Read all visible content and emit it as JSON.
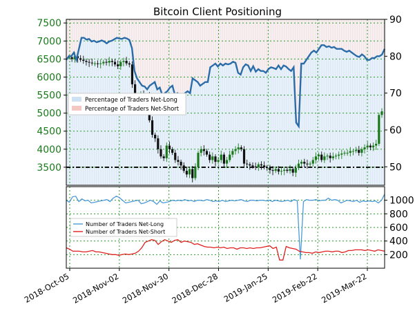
{
  "chart_data": [
    {
      "type": "candlestick+line",
      "title": "Bitcoin Client Positioning",
      "x_tick_labels": [
        "2018-Oct-05",
        "2018-Nov-02",
        "2018-Nov-30",
        "2018-Dec-28",
        "2019-Jan-25",
        "2019-Feb-22",
        "2019-Mar-22"
      ],
      "left_axis": {
        "ticks": [
          3500,
          4000,
          4500,
          5000,
          5500,
          6000,
          6500,
          7000,
          7500
        ],
        "range": [
          3000,
          7600
        ],
        "color": "#1a7a1a"
      },
      "right_axis": {
        "ticks": [
          50,
          60,
          70,
          80,
          90
        ],
        "range": [
          45,
          90
        ]
      },
      "reference_line": {
        "left_value": 3500,
        "right_value": 50
      },
      "legend": {
        "placement": "left",
        "entries": [
          {
            "label": "Percentage of Traders Net-Long",
            "color": "#cfe2f3"
          },
          {
            "label": "Percentage of Traders Net-Short",
            "color": "#f4c7c3"
          }
        ]
      },
      "price_series": {
        "name": "BTC price",
        "values": [
          6550,
          6500,
          6580,
          6520,
          6480,
          6450,
          6420,
          6400,
          6380,
          6380,
          6360,
          6380,
          6420,
          6400,
          6450,
          6420,
          6350,
          6300,
          6420,
          6450,
          6380,
          6350,
          5800,
          5500,
          5450,
          5520,
          5400,
          5500,
          4800,
          4400,
          4300,
          4000,
          3800,
          3750,
          4100,
          4000,
          3900,
          3700,
          3650,
          3550,
          3400,
          3300,
          3450,
          3200,
          3500,
          3900,
          4000,
          3950,
          3850,
          3700,
          3800,
          3650,
          3700,
          3850,
          3600,
          3700,
          3850,
          3950,
          4000,
          4050,
          4000,
          3600,
          3580,
          3550,
          3520,
          3500,
          3580,
          3550,
          3500,
          3480,
          3420,
          3400,
          3450,
          3380,
          3400,
          3430,
          3400,
          3450,
          3350,
          3480,
          3600,
          3650,
          3600,
          3580,
          3600,
          3700,
          3800,
          3850,
          3700,
          3800,
          3820,
          3750,
          3800,
          3820,
          3850,
          3880,
          3900,
          3900,
          3950,
          3950,
          3980,
          3900,
          4000,
          4050,
          4100,
          4050,
          4100,
          4150,
          4950,
          5050
        ],
        "color_up": "#1a7a1a",
        "color_down": "#111111"
      },
      "net_long_pct_series": {
        "name": "Percentage of Traders Net-Long",
        "values": [
          79,
          80,
          80,
          81,
          79,
          82,
          85,
          85,
          84.5,
          84.7,
          84,
          84.2,
          83.8,
          84,
          84.3,
          84,
          83.5,
          84,
          84.2,
          84.6,
          85,
          84.8,
          84.7,
          85,
          84.8,
          84.4,
          82.2,
          76,
          74,
          73,
          72,
          71.8,
          71,
          72,
          72.5,
          73,
          71,
          71.5,
          69.5,
          70,
          70.5,
          71.5,
          72,
          69.5,
          70,
          69.2,
          69.5,
          70,
          70.5,
          70,
          74,
          73.5,
          73,
          72,
          72.5,
          73,
          73,
          77,
          77.5,
          78,
          77.2,
          78,
          77.5,
          78,
          77.8,
          78,
          78.5,
          78.2,
          75.5,
          75,
          77,
          77.8,
          77.5,
          76,
          77.3,
          75.8,
          76.5,
          76,
          76,
          75.5,
          76.5,
          77,
          76.8,
          76.5,
          77.5,
          76.5,
          77.5,
          77.2,
          76.5,
          76,
          77,
          62,
          61,
          78,
          78,
          79,
          80,
          81,
          81.5,
          81,
          82,
          83,
          83,
          82.5,
          82.7,
          82.3,
          82.5,
          82,
          82,
          82,
          81.5,
          81.2,
          81.5,
          81,
          80.5,
          80,
          79.8,
          80.5,
          80,
          79,
          79,
          79.5,
          79.5,
          80,
          80,
          80.5,
          82
        ],
        "color": "#2b6ca8"
      }
    },
    {
      "type": "line",
      "y_ticks": [
        200,
        400,
        600,
        800,
        1000
      ],
      "ylim": [
        0,
        1200
      ],
      "legend": {
        "placement": "left",
        "entries": [
          {
            "label": "Number of Traders Net-Long",
            "color": "#4d9ad8"
          },
          {
            "label": "Number of Traders Net-Short",
            "color": "#e02020"
          }
        ]
      },
      "series": [
        {
          "name": "Number of Traders Net-Long",
          "color": "#4d9ad8",
          "values": [
            1000,
            970,
            1050,
            1060,
            980,
            1020,
            990,
            1000,
            960,
            970,
            980,
            990,
            1000,
            1010,
            980,
            1030,
            1060,
            1040,
            1000,
            960,
            970,
            980,
            990,
            1000,
            950,
            960,
            980,
            1000,
            980,
            940,
            990,
            960,
            970,
            980,
            1000,
            990,
            1000,
            990,
            1010,
            990,
            1000,
            980,
            1000,
            1000,
            990,
            1010,
            1000,
            980,
            990,
            980,
            1000,
            980,
            990,
            1000,
            990,
            1000,
            1010,
            990,
            980,
            1000,
            1000,
            990,
            1000,
            1000,
            990,
            1000,
            980,
            1000,
            990,
            980,
            990,
            1000,
            980,
            1010,
            990,
            130,
            980,
            1010,
            1000,
            1000,
            1010,
            990,
            1000,
            1000,
            1030,
            1000,
            1010,
            1000,
            960,
            980,
            1000,
            990,
            980,
            1000,
            970,
            990,
            980,
            990,
            980,
            990,
            960,
            1000,
            1090
          ]
        },
        {
          "name": "Number of Traders Net-Short",
          "color": "#e02020",
          "values": [
            300,
            280,
            250,
            250,
            250,
            240,
            240,
            250,
            260,
            240,
            240,
            230,
            220,
            210,
            200,
            200,
            190,
            200,
            210,
            200,
            210,
            220,
            250,
            300,
            380,
            400,
            420,
            410,
            350,
            390,
            420,
            400,
            380,
            410,
            420,
            380,
            400,
            390,
            380,
            350,
            360,
            340,
            320,
            310,
            310,
            300,
            310,
            300,
            310,
            290,
            300,
            300,
            280,
            300,
            300,
            290,
            300,
            290,
            300,
            300,
            310,
            320,
            330,
            290,
            310,
            120,
            120,
            320,
            300,
            290,
            280,
            250,
            240,
            230,
            230,
            220,
            240,
            230,
            240,
            250,
            250,
            240,
            250,
            250,
            230,
            240,
            260,
            260,
            270,
            270,
            270,
            260,
            270,
            260,
            250,
            270,
            260,
            250
          ]
        }
      ],
      "x_tick_labels": [
        "2018-Oct-05",
        "2018-Nov-02",
        "2018-Nov-30",
        "2018-Dec-28",
        "2019-Jan-25",
        "2019-Feb-22",
        "2019-Mar-22"
      ]
    }
  ]
}
